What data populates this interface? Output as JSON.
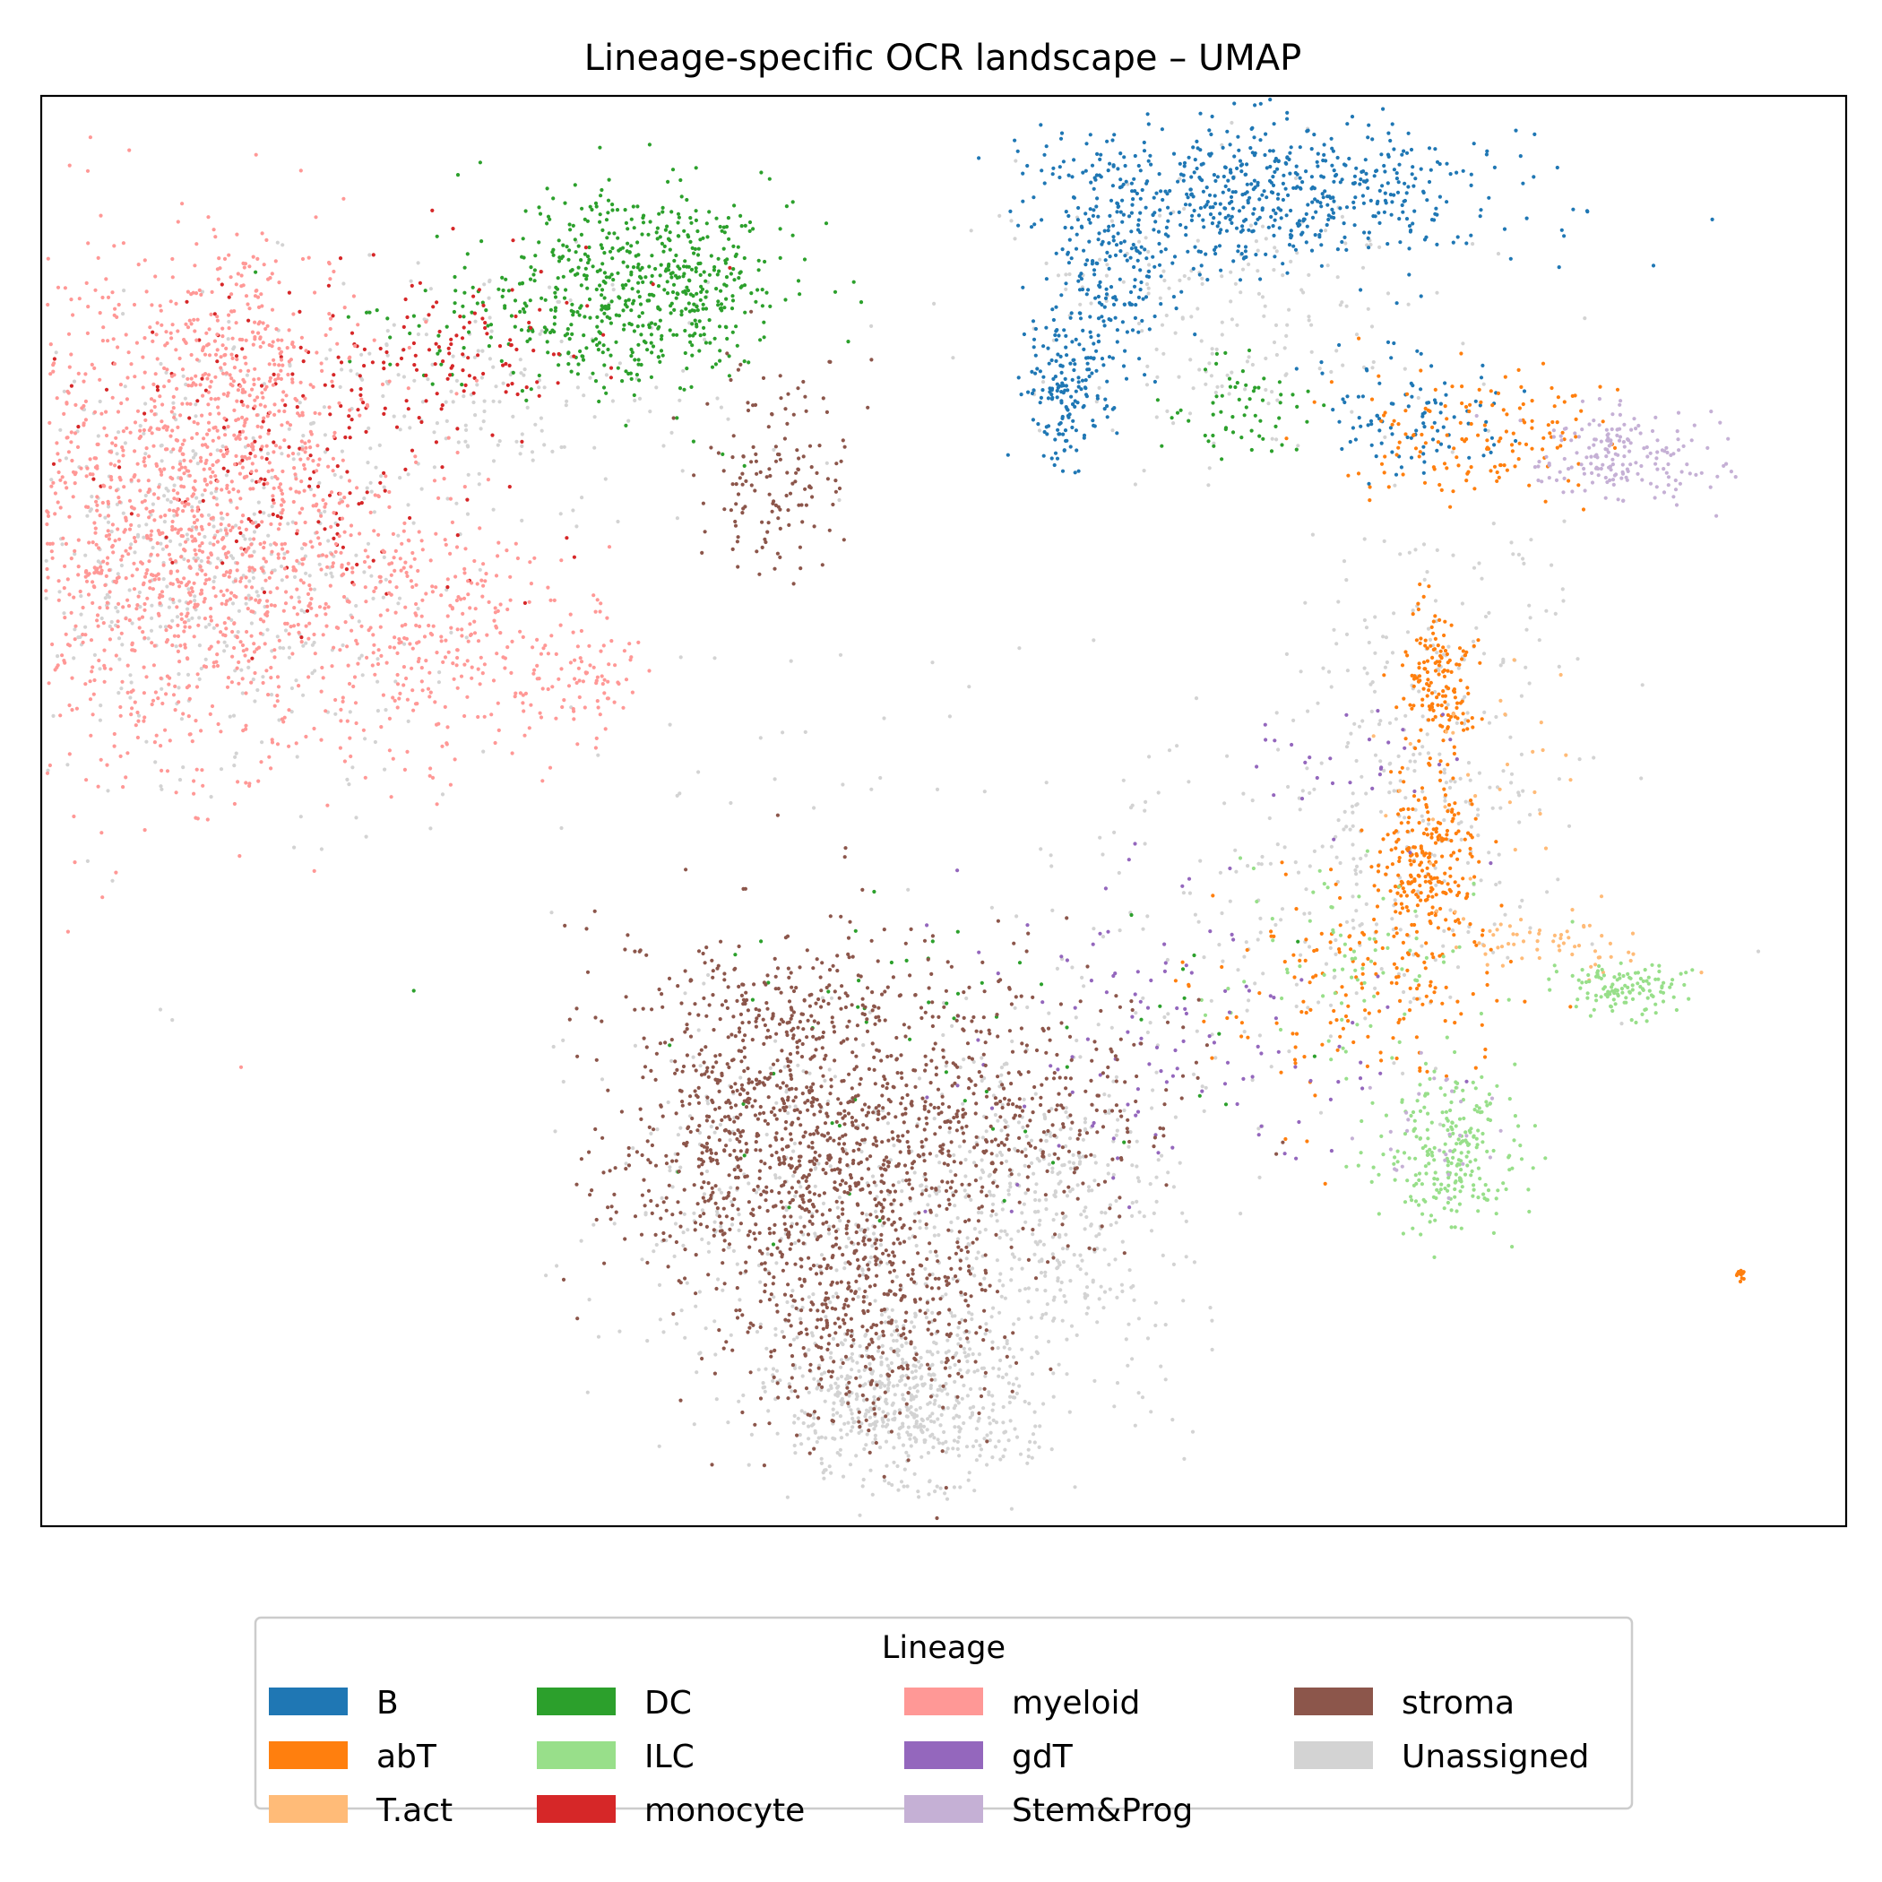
{
  "chart_data": {
    "type": "scatter",
    "title": "Lineage-specific OCR landscape – UMAP",
    "xlabel": "",
    "ylabel": "",
    "axes_ticks": false,
    "grid": false,
    "legend": {
      "title": "Lineage",
      "placement": "bottom-center",
      "columns": 4
    },
    "series": [
      {
        "name": "B",
        "color": "#1f77b4",
        "clusters": [
          {
            "cx": 10.6,
            "cy": 9.8,
            "sx": 0.95,
            "sy": 0.35,
            "n": 600
          },
          {
            "cx": 9.2,
            "cy": 9.2,
            "sx": 0.25,
            "sy": 0.55,
            "n": 200
          },
          {
            "cx": 8.8,
            "cy": 8.0,
            "sx": 0.18,
            "sy": 0.35,
            "n": 160
          },
          {
            "cx": 11.8,
            "cy": 7.8,
            "sx": 0.4,
            "sy": 0.3,
            "n": 100
          }
        ]
      },
      {
        "name": "abT",
        "color": "#ff7f0e",
        "clusters": [
          {
            "cx": 12.0,
            "cy": 5.4,
            "sx": 0.15,
            "sy": 0.35,
            "n": 150
          },
          {
            "cx": 11.9,
            "cy": 3.7,
            "sx": 0.25,
            "sy": 0.45,
            "n": 250
          },
          {
            "cx": 12.3,
            "cy": 7.6,
            "sx": 0.55,
            "sy": 0.3,
            "n": 150
          },
          {
            "cx": 11.3,
            "cy": 2.6,
            "sx": 0.7,
            "sy": 0.5,
            "n": 150
          },
          {
            "cx": 14.6,
            "cy": 0.0,
            "sx": 0.03,
            "sy": 0.03,
            "n": 12
          }
        ]
      },
      {
        "name": "T.act",
        "color": "#ffbb78",
        "clusters": [
          {
            "cx": 13.0,
            "cy": 3.0,
            "sx": 0.45,
            "sy": 0.15,
            "n": 60
          },
          {
            "cx": 12.3,
            "cy": 4.5,
            "sx": 0.4,
            "sy": 0.4,
            "n": 30
          }
        ]
      },
      {
        "name": "DC",
        "color": "#2ca02c",
        "clusters": [
          {
            "cx": 5.2,
            "cy": 9.0,
            "sx": 0.6,
            "sy": 0.45,
            "n": 550
          },
          {
            "cx": 4.0,
            "cy": 8.6,
            "sx": 0.8,
            "sy": 0.35,
            "n": 100
          },
          {
            "cx": 10.3,
            "cy": 7.9,
            "sx": 0.3,
            "sy": 0.25,
            "n": 60
          },
          {
            "cx": 7.5,
            "cy": 2.0,
            "sx": 1.5,
            "sy": 0.9,
            "n": 60
          }
        ]
      },
      {
        "name": "ILC",
        "color": "#98df8a",
        "clusters": [
          {
            "cx": 12.1,
            "cy": 1.1,
            "sx": 0.3,
            "sy": 0.35,
            "n": 250
          },
          {
            "cx": 13.6,
            "cy": 2.6,
            "sx": 0.3,
            "sy": 0.12,
            "n": 120
          },
          {
            "cx": 11.3,
            "cy": 2.8,
            "sx": 0.6,
            "sy": 0.5,
            "n": 80
          }
        ]
      },
      {
        "name": "monocyte",
        "color": "#d62728",
        "clusters": [
          {
            "cx": 2.3,
            "cy": 7.6,
            "sx": 0.9,
            "sy": 0.8,
            "n": 200
          },
          {
            "cx": 3.6,
            "cy": 8.4,
            "sx": 0.6,
            "sy": 0.35,
            "n": 80
          }
        ]
      },
      {
        "name": "myeloid",
        "color": "#ff9896",
        "clusters": [
          {
            "cx": 1.2,
            "cy": 6.8,
            "sx": 0.85,
            "sy": 1.1,
            "n": 1500
          },
          {
            "cx": 1.7,
            "cy": 8.5,
            "sx": 0.35,
            "sy": 0.4,
            "n": 150
          },
          {
            "cx": 3.4,
            "cy": 5.8,
            "sx": 0.55,
            "sy": 0.55,
            "n": 300
          },
          {
            "cx": 4.6,
            "cy": 5.4,
            "sx": 0.25,
            "sy": 0.3,
            "n": 80
          }
        ]
      },
      {
        "name": "gdT",
        "color": "#9467bd",
        "clusters": [
          {
            "cx": 9.6,
            "cy": 2.2,
            "sx": 1.0,
            "sy": 0.8,
            "n": 120
          },
          {
            "cx": 11.3,
            "cy": 4.6,
            "sx": 0.4,
            "sy": 0.3,
            "n": 30
          }
        ]
      },
      {
        "name": "Stem&Prog",
        "color": "#c5b0d5",
        "clusters": [
          {
            "cx": 13.6,
            "cy": 7.4,
            "sx": 0.45,
            "sy": 0.2,
            "n": 180
          },
          {
            "cx": 12.0,
            "cy": 1.3,
            "sx": 0.3,
            "sy": 0.3,
            "n": 30
          }
        ]
      },
      {
        "name": "stroma",
        "color": "#8c564b",
        "clusters": [
          {
            "cx": 6.3,
            "cy": 1.3,
            "sx": 0.7,
            "sy": 0.75,
            "n": 900
          },
          {
            "cx": 7.1,
            "cy": -0.3,
            "sx": 0.6,
            "sy": 0.6,
            "n": 500
          },
          {
            "cx": 8.2,
            "cy": 1.5,
            "sx": 0.8,
            "sy": 0.55,
            "n": 400
          },
          {
            "cx": 6.3,
            "cy": 7.3,
            "sx": 0.3,
            "sy": 0.5,
            "n": 140
          },
          {
            "cx": 6.8,
            "cy": 2.5,
            "sx": 0.9,
            "sy": 0.4,
            "n": 150
          }
        ]
      },
      {
        "name": "Unassigned",
        "color": "#d3d3d3",
        "clusters": [
          {
            "cx": 7.4,
            "cy": -1.2,
            "sx": 0.55,
            "sy": 0.4,
            "n": 600
          },
          {
            "cx": 8.6,
            "cy": 0.6,
            "sx": 0.6,
            "sy": 0.8,
            "n": 500
          },
          {
            "cx": 6.3,
            "cy": 0.6,
            "sx": 0.8,
            "sy": 0.9,
            "n": 300
          },
          {
            "cx": 1.4,
            "cy": 6.4,
            "sx": 1.0,
            "sy": 1.0,
            "n": 500
          },
          {
            "cx": 3.8,
            "cy": 8.0,
            "sx": 1.0,
            "sy": 0.6,
            "n": 200
          },
          {
            "cx": 10.2,
            "cy": 8.7,
            "sx": 1.0,
            "sy": 0.6,
            "n": 200
          },
          {
            "cx": 12.0,
            "cy": 5.0,
            "sx": 0.6,
            "sy": 1.0,
            "n": 250
          },
          {
            "cx": 10.8,
            "cy": 3.2,
            "sx": 1.0,
            "sy": 0.7,
            "n": 180
          },
          {
            "cx": 8.0,
            "cy": 4.8,
            "sx": 2.0,
            "sy": 1.0,
            "n": 60
          }
        ]
      }
    ],
    "xlim": [
      0,
      15.5
    ],
    "ylim": [
      -2.3,
      10.7
    ]
  }
}
